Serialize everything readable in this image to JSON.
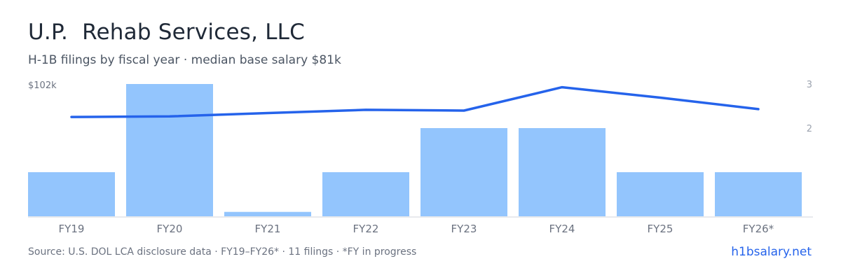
{
  "title": "U.P.  Rehab Services, LLC",
  "subtitle": "H-1B filings by fiscal year · median base salary $81k",
  "footer": {
    "source": "Source: U.S. DOL LCA disclosure data · FY19–FY26* · 11 filings · *FY in progress",
    "brand": "h1bsalary.net"
  },
  "colors": {
    "bar": "#93c5fd",
    "line": "#2563eb",
    "axis": "#d1d5db",
    "tick": "#6b7280",
    "right_tick": "#9ca3af"
  },
  "chart_data": {
    "type": "bar",
    "categories": [
      "FY19",
      "FY20",
      "FY21",
      "FY22",
      "FY23",
      "FY24",
      "FY25",
      "FY26*"
    ],
    "series": [
      {
        "type": "bar",
        "axis": "right",
        "values": [
          1,
          3,
          0.1,
          1,
          2,
          2,
          1,
          1
        ]
      },
      {
        "type": "line",
        "axis": "left",
        "values": [
          76.6,
          77.0,
          79.6,
          82.1,
          81.5,
          99.5,
          91.5,
          82.6
        ]
      }
    ],
    "left_axis": {
      "tick_label": "$102k",
      "ylim": [
        0,
        102
      ]
    },
    "right_axis": {
      "ticks": [
        3,
        2
      ],
      "ylim": [
        0,
        3
      ]
    },
    "grid": false,
    "legend": "none"
  }
}
